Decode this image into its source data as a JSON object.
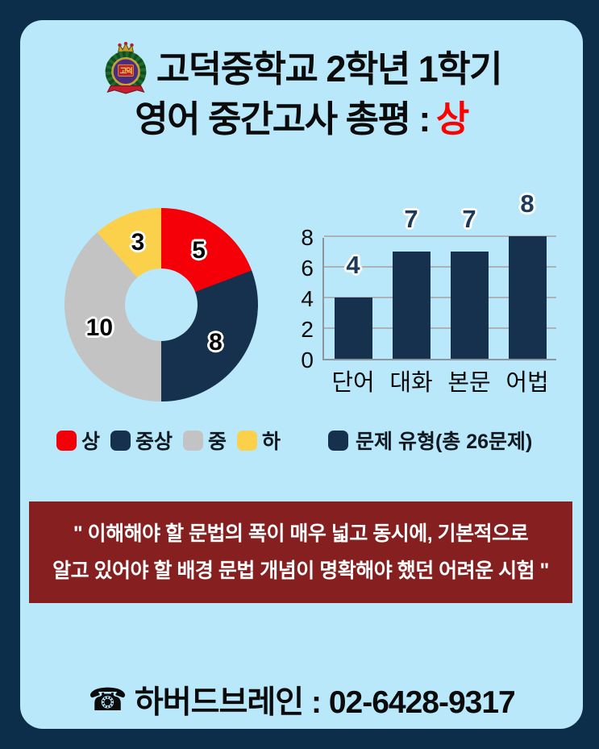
{
  "page": {
    "bg_outer": "#0d2e4a",
    "bg_inner": "#b9e8fb"
  },
  "header": {
    "emblem_icon": "school-crest",
    "emblem_text": "고덕",
    "title_line1": "고덕중학교 2학년 1학기",
    "title_line2_prefix": "영어 중간고사 총평 : ",
    "title_line2_grade": "상",
    "grade_color": "#fb0100"
  },
  "chart_data": [
    {
      "type": "pie",
      "donut": true,
      "labels": [
        "상",
        "중상",
        "중",
        "하"
      ],
      "values": [
        5,
        8,
        10,
        3
      ],
      "colors": [
        "#f50008",
        "#16314d",
        "#c3c3c3",
        "#fbd04b"
      ],
      "start_angle_deg": 0,
      "direction": "clockwise",
      "legend_position": "bottom"
    },
    {
      "type": "bar",
      "categories": [
        "단어",
        "대화",
        "본문",
        "어법"
      ],
      "values": [
        4,
        7,
        7,
        8
      ],
      "bar_color": "#16314d",
      "yticks": [
        0,
        2,
        4,
        6,
        8
      ],
      "ylim": [
        0,
        8
      ],
      "grid": true,
      "legend": "문제 유형(총 26문제)",
      "legend_position": "bottom"
    }
  ],
  "quote": {
    "bg": "#862020",
    "line1": "\" 이해해야 할 문법의 폭이 매우 넓고 동시에, 기본적으로",
    "line2": "알고 있어야 할 배경 문법 개념이 명확해야 했던 어려운 시험 \""
  },
  "footer": {
    "phone_icon": "☎",
    "label": "하버드브레인 : 02-6428-9317"
  }
}
